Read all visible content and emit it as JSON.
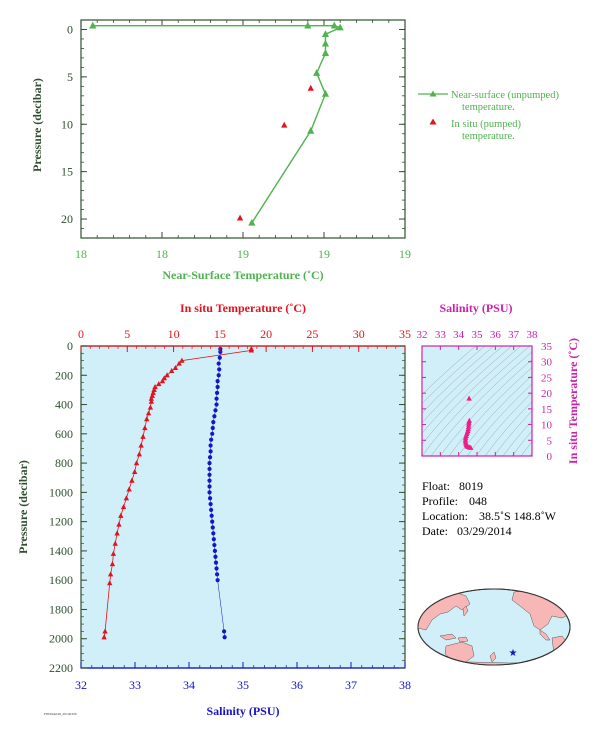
{
  "figure": {
    "colors": {
      "green": "#4fb34f",
      "red": "#e0141e",
      "blue": "#1414c8",
      "magenta": "#cc22aa",
      "pink": "#e8208a",
      "axis_dark": "#2f4f2f",
      "panel_bg": "#d1eff8",
      "land": "#f7b7b7"
    },
    "small_footer": "F8019A048_20140329"
  },
  "chart_data": [
    {
      "id": "near_surface",
      "type": "line",
      "xlabel": "Near-Surface Temperature (˚C)",
      "ylabel": "Pressure (decibar)",
      "xticks": [
        "18",
        "18",
        "19",
        "19",
        "19"
      ],
      "yticks": [
        "0",
        "5",
        "10",
        "15",
        "20"
      ],
      "xlim": [
        17.95,
        19.05
      ],
      "ylim": [
        22,
        -1
      ],
      "series": [
        {
          "name": "Near-surface (unpumped) temperature.",
          "color": "#4fb34f",
          "marker": "triangle",
          "points": [
            [
              17.99,
              -0.4
            ],
            [
              18.72,
              -0.4
            ],
            [
              18.81,
              -0.4
            ],
            [
              18.83,
              -0.2
            ],
            [
              18.78,
              0.5
            ],
            [
              18.78,
              1.5
            ],
            [
              18.78,
              2.5
            ],
            [
              18.75,
              4.6
            ],
            [
              18.78,
              6.8
            ],
            [
              18.73,
              10.7
            ],
            [
              18.53,
              20.4
            ]
          ]
        },
        {
          "name": "In situ (pumped) temperature.",
          "color": "#e0141e",
          "marker": "triangle-open",
          "points": [
            [
              18.73,
              6.2
            ],
            [
              18.64,
              10.1
            ],
            [
              18.49,
              19.9
            ]
          ]
        }
      ]
    },
    {
      "id": "profile",
      "type": "line",
      "top_axis_label": "In situ Temperature (˚C)",
      "bottom_axis_label": "Salinity (PSU)",
      "ylabel": "Pressure (decibar)",
      "temperature_ticks": [
        "0",
        "5",
        "10",
        "15",
        "20",
        "25",
        "30",
        "35"
      ],
      "salinity_ticks": [
        "32",
        "33",
        "34",
        "35",
        "36",
        "37",
        "38"
      ],
      "pressure_ticks": [
        "0",
        "200",
        "400",
        "600",
        "800",
        "1000",
        "1200",
        "1400",
        "1600",
        "1800",
        "2000",
        "2200"
      ],
      "temperature_range": [
        0,
        35
      ],
      "salinity_range": [
        32,
        38
      ],
      "pressure_range": [
        0,
        2200
      ],
      "temperature": {
        "name": "In situ Temperature (˚C)",
        "color": "#e0141e",
        "points": [
          [
            18.4,
            20
          ],
          [
            18.4,
            30
          ],
          [
            10.9,
            100
          ],
          [
            10.6,
            120
          ],
          [
            10.2,
            150
          ],
          [
            9.8,
            170
          ],
          [
            9.3,
            200
          ],
          [
            9.0,
            220
          ],
          [
            8.8,
            240
          ],
          [
            8.4,
            260
          ],
          [
            8.0,
            280
          ],
          [
            7.9,
            300
          ],
          [
            7.8,
            320
          ],
          [
            7.7,
            340
          ],
          [
            7.6,
            360
          ],
          [
            7.6,
            380
          ],
          [
            7.5,
            420
          ],
          [
            7.3,
            460
          ],
          [
            7.1,
            500
          ],
          [
            6.9,
            560
          ],
          [
            6.7,
            620
          ],
          [
            6.5,
            680
          ],
          [
            6.3,
            740
          ],
          [
            6.0,
            800
          ],
          [
            5.8,
            860
          ],
          [
            5.5,
            920
          ],
          [
            5.2,
            980
          ],
          [
            4.9,
            1040
          ],
          [
            4.6,
            1100
          ],
          [
            4.3,
            1160
          ],
          [
            4.1,
            1220
          ],
          [
            3.9,
            1280
          ],
          [
            3.7,
            1350
          ],
          [
            3.5,
            1420
          ],
          [
            3.4,
            1490
          ],
          [
            3.2,
            1560
          ],
          [
            3.1,
            1620
          ],
          [
            2.6,
            1950
          ],
          [
            2.5,
            1990
          ]
        ]
      },
      "salinity": {
        "name": "Salinity (PSU)",
        "color": "#1414c8",
        "points": [
          [
            34.58,
            20
          ],
          [
            34.58,
            40
          ],
          [
            34.57,
            80
          ],
          [
            34.55,
            120
          ],
          [
            34.56,
            160
          ],
          [
            34.55,
            200
          ],
          [
            34.53,
            240
          ],
          [
            34.53,
            280
          ],
          [
            34.52,
            320
          ],
          [
            34.51,
            360
          ],
          [
            34.51,
            400
          ],
          [
            34.49,
            440
          ],
          [
            34.47,
            480
          ],
          [
            34.45,
            520
          ],
          [
            34.44,
            560
          ],
          [
            34.43,
            600
          ],
          [
            34.41,
            640
          ],
          [
            34.4,
            680
          ],
          [
            34.4,
            720
          ],
          [
            34.39,
            760
          ],
          [
            34.38,
            800
          ],
          [
            34.38,
            840
          ],
          [
            34.38,
            880
          ],
          [
            34.38,
            920
          ],
          [
            34.38,
            960
          ],
          [
            34.38,
            1000
          ],
          [
            34.39,
            1040
          ],
          [
            34.4,
            1080
          ],
          [
            34.41,
            1120
          ],
          [
            34.42,
            1160
          ],
          [
            34.43,
            1200
          ],
          [
            34.44,
            1240
          ],
          [
            34.45,
            1280
          ],
          [
            34.46,
            1320
          ],
          [
            34.47,
            1360
          ],
          [
            34.48,
            1400
          ],
          [
            34.49,
            1440
          ],
          [
            34.5,
            1480
          ],
          [
            34.51,
            1520
          ],
          [
            34.52,
            1560
          ],
          [
            34.53,
            1600
          ],
          [
            34.65,
            1950
          ],
          [
            34.66,
            1990
          ]
        ]
      }
    },
    {
      "id": "ts_diagram",
      "type": "scatter",
      "title": "Salinity (PSU)",
      "ylabel": "In situ Temperature (˚C)",
      "xticks": [
        "32",
        "33",
        "34",
        "35",
        "36",
        "37",
        "38"
      ],
      "yticks": [
        "0",
        "5",
        "10",
        "15",
        "20",
        "25",
        "30",
        "35"
      ],
      "xlim": [
        32,
        38
      ],
      "ylim": [
        0,
        35
      ],
      "color": "#e8208a",
      "points": [
        [
          34.57,
          18.3
        ],
        [
          34.58,
          11.2
        ],
        [
          34.56,
          10.6
        ],
        [
          34.55,
          10.0
        ],
        [
          34.54,
          9.3
        ],
        [
          34.52,
          8.6
        ],
        [
          34.5,
          8.0
        ],
        [
          34.47,
          7.5
        ],
        [
          34.44,
          7.0
        ],
        [
          34.41,
          6.4
        ],
        [
          34.38,
          5.8
        ],
        [
          34.37,
          5.2
        ],
        [
          34.37,
          4.6
        ],
        [
          34.39,
          4.0
        ],
        [
          34.42,
          3.5
        ],
        [
          34.46,
          3.1
        ],
        [
          34.52,
          2.9
        ],
        [
          34.6,
          2.7
        ],
        [
          34.66,
          2.6
        ]
      ]
    }
  ],
  "float_info": [
    {
      "label": "Float:",
      "value": "8019"
    },
    {
      "label": "Profile:",
      "value": "048"
    },
    {
      "label": "Location:",
      "value": "38.5˚S  148.8˚W"
    },
    {
      "label": "Date:",
      "value": "03/29/2014"
    }
  ],
  "map": {
    "marker_color": "#1414c8",
    "marker": "star"
  }
}
